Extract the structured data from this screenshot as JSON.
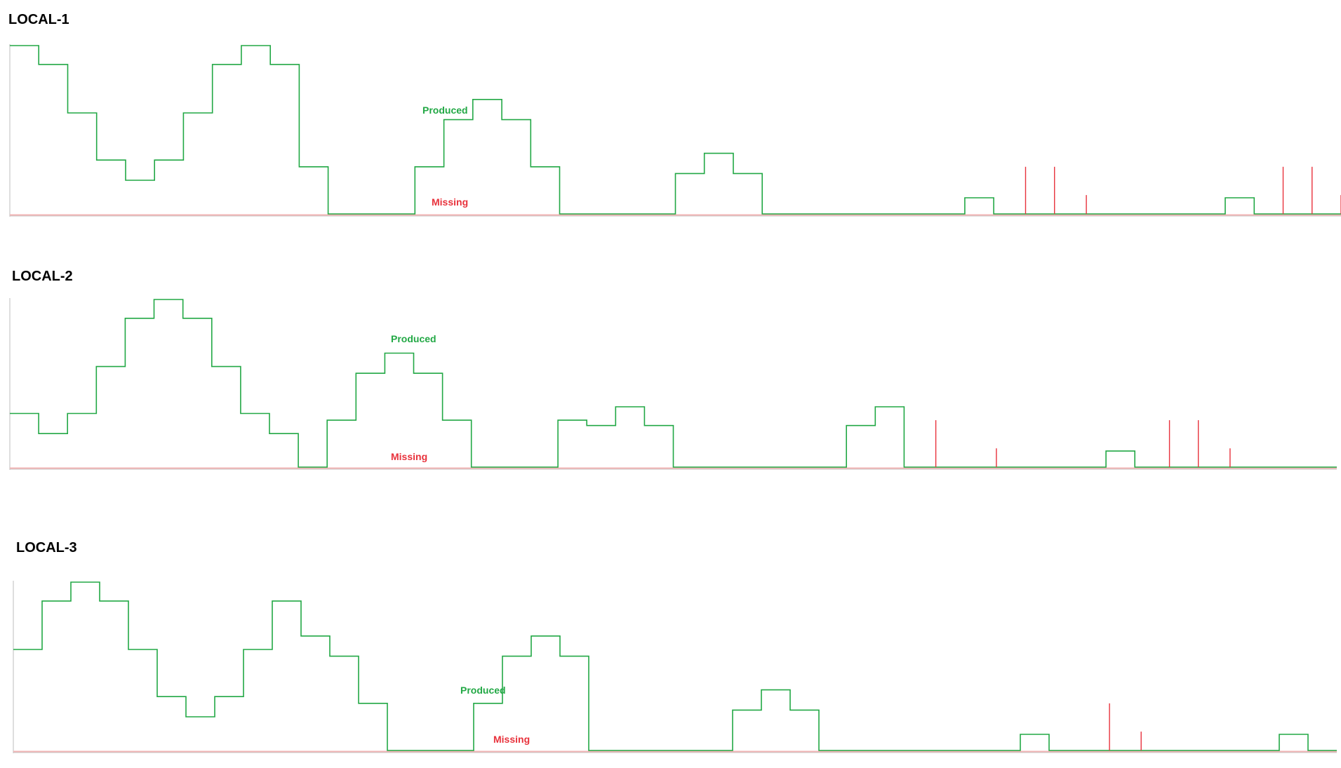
{
  "colors": {
    "produced": "#22a845",
    "missing": "#e8323c",
    "missing_baseline": "#f2b5b5",
    "axis": "#c8c8c8"
  },
  "chart_data": [
    {
      "type": "line",
      "step": true,
      "title": "LOCAL-1",
      "ylim": [
        0,
        250
      ],
      "xlim": [
        0,
        46
      ],
      "grid": false,
      "produced_label": "Produced",
      "missing_label": "Missing",
      "series": [
        {
          "name": "Produced",
          "x": [
            0,
            1,
            2,
            3,
            4,
            5,
            6,
            7,
            8,
            9,
            10,
            11,
            12,
            13,
            14,
            15,
            16,
            17,
            18,
            19,
            20,
            21,
            22,
            23,
            24,
            25,
            26,
            27,
            28,
            29,
            30,
            31,
            32,
            33,
            34,
            35,
            36,
            37,
            38,
            39,
            40,
            41,
            42,
            43,
            44,
            45
          ],
          "values": [
            250,
            222,
            150,
            80,
            50,
            80,
            150,
            222,
            250,
            222,
            70,
            0,
            0,
            0,
            70,
            140,
            170,
            140,
            70,
            0,
            0,
            0,
            0,
            60,
            90,
            60,
            0,
            0,
            0,
            0,
            0,
            0,
            0,
            24,
            0,
            0,
            0,
            0,
            0,
            0,
            0,
            0,
            24,
            0,
            0,
            0
          ]
        },
        {
          "name": "Missing",
          "x": [
            35.1,
            36.1,
            37.2,
            44.0,
            45.0,
            46.0
          ],
          "values": [
            70,
            70,
            28,
            70,
            70,
            28
          ]
        }
      ]
    },
    {
      "type": "line",
      "step": true,
      "title": "LOCAL-2",
      "ylim": [
        0,
        250
      ],
      "xlim": [
        0,
        46
      ],
      "grid": false,
      "produced_label": "Produced",
      "missing_label": "Missing",
      "series": [
        {
          "name": "Produced",
          "x": [
            0,
            1,
            2,
            3,
            4,
            5,
            6,
            7,
            8,
            9,
            10,
            11,
            12,
            13,
            14,
            15,
            16,
            17,
            18,
            19,
            20,
            21,
            22,
            23,
            24,
            25,
            26,
            27,
            28,
            29,
            30,
            31,
            32,
            33,
            34,
            35,
            36,
            37,
            38,
            39,
            40,
            41,
            42,
            43,
            44,
            45
          ],
          "values": [
            80,
            50,
            80,
            150,
            222,
            250,
            222,
            150,
            80,
            50,
            0,
            70,
            140,
            170,
            140,
            70,
            0,
            0,
            0,
            70,
            62,
            90,
            62,
            0,
            0,
            0,
            0,
            0,
            0,
            62,
            90,
            0,
            0,
            0,
            0,
            0,
            0,
            0,
            24,
            0,
            0,
            0,
            0,
            0,
            0,
            0
          ]
        },
        {
          "name": "Missing",
          "x": [
            32.1,
            34.2,
            40.2,
            41.2,
            42.3
          ],
          "values": [
            70,
            28,
            70,
            70,
            28
          ]
        }
      ]
    },
    {
      "type": "line",
      "step": true,
      "title": "LOCAL-3",
      "ylim": [
        0,
        250
      ],
      "xlim": [
        0,
        46
      ],
      "grid": false,
      "produced_label": "Produced",
      "missing_label": "Missing",
      "series": [
        {
          "name": "Produced",
          "x": [
            0,
            1,
            2,
            3,
            4,
            5,
            6,
            7,
            8,
            9,
            10,
            11,
            12,
            13,
            14,
            15,
            16,
            17,
            18,
            19,
            20,
            21,
            22,
            23,
            24,
            25,
            26,
            27,
            28,
            29,
            30,
            31,
            32,
            33,
            34,
            35,
            36,
            37,
            38,
            39,
            40,
            41,
            42,
            43,
            44,
            45
          ],
          "values": [
            150,
            222,
            250,
            222,
            150,
            80,
            50,
            80,
            150,
            222,
            170,
            140,
            70,
            0,
            0,
            0,
            70,
            140,
            170,
            140,
            0,
            0,
            0,
            0,
            0,
            60,
            90,
            60,
            0,
            0,
            0,
            0,
            0,
            0,
            0,
            24,
            0,
            0,
            0,
            0,
            0,
            0,
            0,
            0,
            24,
            0
          ]
        },
        {
          "name": "Missing",
          "x": [
            38.1,
            39.2
          ],
          "values": [
            70,
            28
          ]
        }
      ]
    }
  ]
}
